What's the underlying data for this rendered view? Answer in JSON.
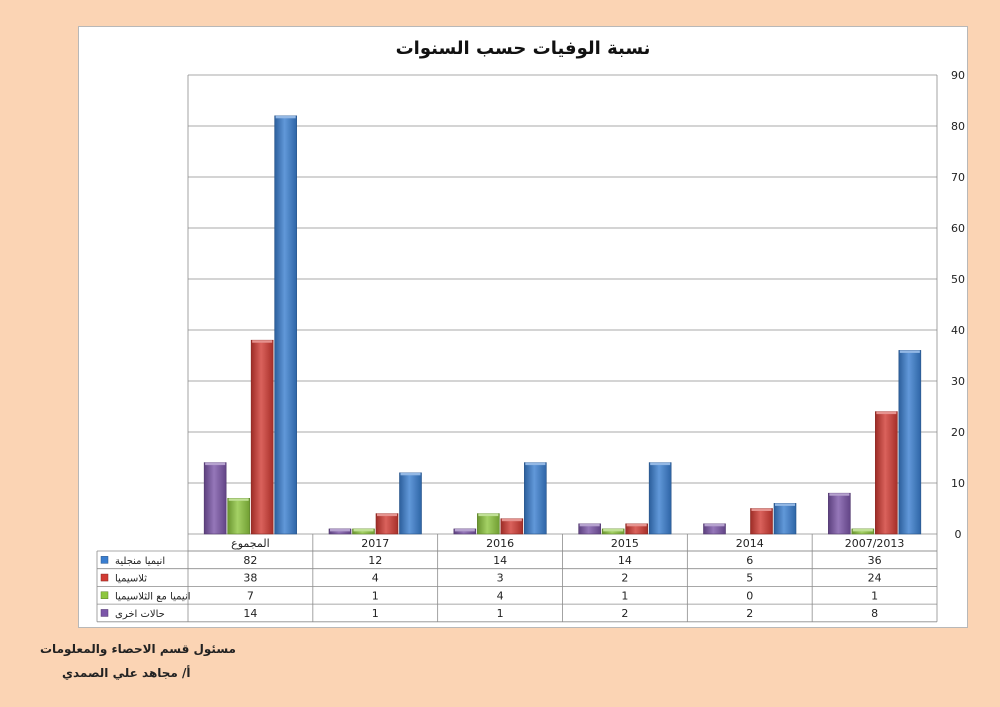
{
  "chart_data": {
    "type": "bar",
    "title": "نسبة الوفيات حسب السنوات",
    "categories": [
      "المجموع",
      "2017",
      "2016",
      "2015",
      "2014",
      "2007/2013"
    ],
    "ylim": [
      0,
      90
    ],
    "yticks": [
      0,
      10,
      20,
      30,
      40,
      50,
      60,
      70,
      80,
      90
    ],
    "grid": true,
    "legend": "data-table-left",
    "series": [
      {
        "name": "انيميا منجلية",
        "color": "#3a7ed0",
        "values": [
          82,
          12,
          14,
          14,
          6,
          36
        ]
      },
      {
        "name": "ثلاسيميا",
        "color": "#d13b33",
        "values": [
          38,
          4,
          3,
          2,
          5,
          24
        ]
      },
      {
        "name": "انيميا مع الثلاسيميا",
        "color": "#8dc63f",
        "values": [
          7,
          1,
          4,
          1,
          0,
          1
        ]
      },
      {
        "name": "حالات اخرى",
        "color": "#7b55a8",
        "values": [
          14,
          1,
          1,
          2,
          2,
          8
        ]
      }
    ]
  },
  "footer": {
    "line1": "مسئول قسم الاحصاء والمعلومات",
    "line2": "أ/ مجاهد علي الصمدي"
  }
}
